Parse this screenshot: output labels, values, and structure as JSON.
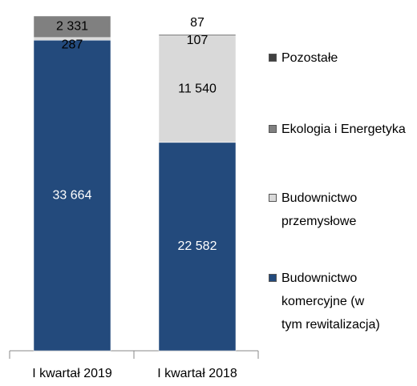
{
  "chart_data": {
    "type": "stacked_bar",
    "categories": [
      "I kwartał 2019",
      "I kwartał 2018"
    ],
    "series": [
      {
        "name": "Budownictwo komercyjne (w tym rewitalizacja)",
        "color": "#234a7c",
        "values": [
          33664,
          22582
        ],
        "value_labels": [
          "33 664",
          "22 582"
        ]
      },
      {
        "name": "Budownictwo przemysłowe",
        "color": "#d9d9d9",
        "values": [
          287,
          11540
        ],
        "value_labels": [
          "287",
          "11 540"
        ]
      },
      {
        "name": "Ekologia i Energetyka",
        "color": "#808080",
        "values": [
          2331,
          107
        ],
        "value_labels": [
          "2 331",
          "107"
        ]
      },
      {
        "name": "Pozostałe",
        "color": "#404040",
        "values": [
          null,
          87
        ],
        "value_labels": [
          null,
          "87"
        ]
      }
    ],
    "ylim": [
      0,
      36282
    ]
  }
}
